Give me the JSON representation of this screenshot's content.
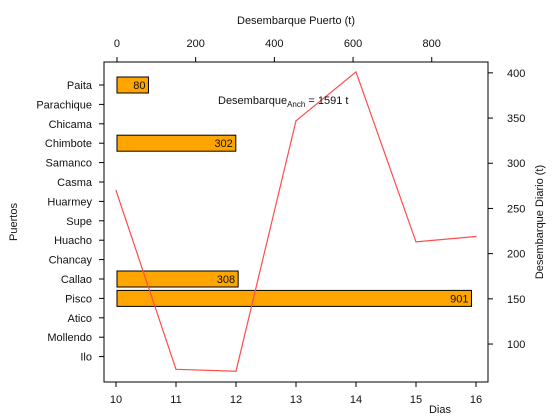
{
  "chart_data": {
    "type": "bar",
    "top_axis_title": "Desembarque Puerto (t)",
    "left_axis_title": "Puertos",
    "right_axis_title": "Desembarque Diario (t)",
    "bottom_axis_title": "Dias",
    "annotation": {
      "prefix": "Desembarque",
      "subscript": "Anch",
      "suffix": " = 1591 t"
    },
    "colors": {
      "bar_fill": "#FFA500",
      "bar_stroke": "#000000",
      "line": "#FF4C4C"
    },
    "categories": [
      "Paita",
      "Parachique",
      "Chicama",
      "Chimbote",
      "Samanco",
      "Casma",
      "Huarmey",
      "Supe",
      "Huacho",
      "Chancay",
      "Callao",
      "Pisco",
      "Atico",
      "Mollendo",
      "Ilo"
    ],
    "bars": [
      {
        "port": "Paita",
        "value": 80,
        "label": "80"
      },
      {
        "port": "Chimbote",
        "value": 302,
        "label": "302"
      },
      {
        "port": "Callao",
        "value": 308,
        "label": "308"
      },
      {
        "port": "Pisco",
        "value": 901,
        "label": "901"
      }
    ],
    "top_axis": {
      "range": [
        -33,
        943
      ],
      "ticks": [
        0,
        200,
        400,
        600,
        800
      ]
    },
    "bottom_axis": {
      "range": [
        9.8,
        16.2
      ],
      "ticks": [
        10,
        11,
        12,
        13,
        14,
        15,
        16
      ]
    },
    "right_axis": {
      "range": [
        58,
        412
      ],
      "ticks": [
        100,
        150,
        200,
        250,
        300,
        350,
        400
      ]
    },
    "line": {
      "name": "Desembarque Diario",
      "x": [
        10,
        11,
        12,
        13,
        14,
        15,
        16
      ],
      "y": [
        270,
        72,
        70,
        347,
        401,
        213,
        219
      ]
    }
  }
}
